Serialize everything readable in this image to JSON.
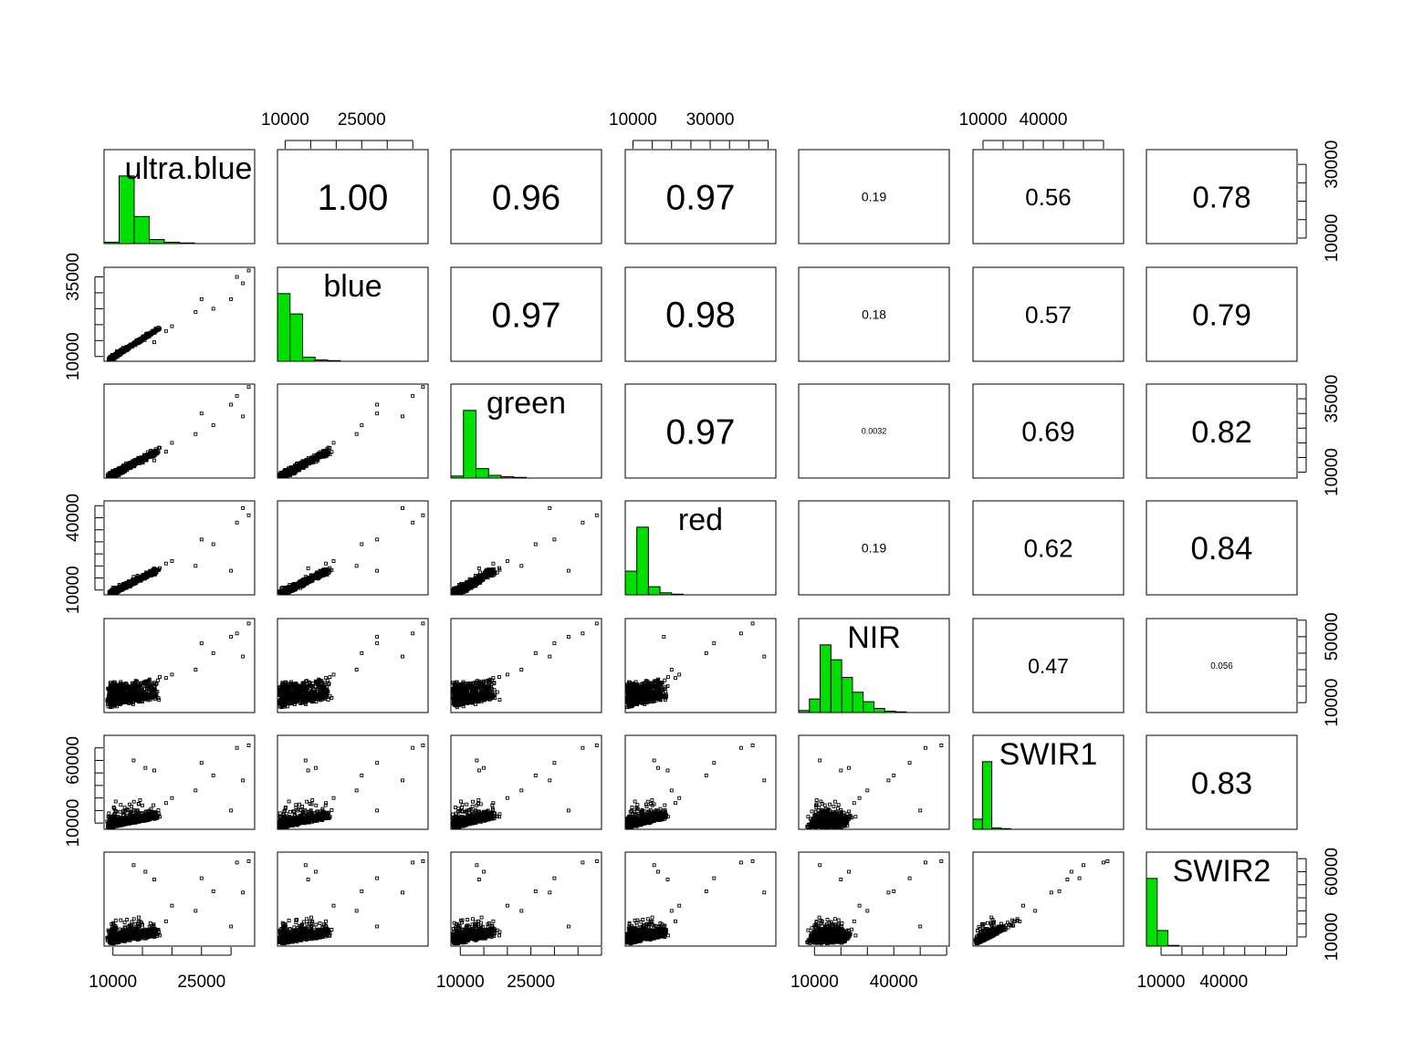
{
  "chart_data": {
    "type": "scatter",
    "variables": [
      "ultra.blue",
      "blue",
      "green",
      "red",
      "NIR",
      "SWIR1",
      "SWIR2"
    ],
    "ranges": [
      [
        8500,
        34000
      ],
      [
        8500,
        38000
      ],
      [
        8000,
        40000
      ],
      [
        8000,
        47000
      ],
      [
        4000,
        61000
      ],
      [
        5000,
        80000
      ],
      [
        3000,
        75000
      ]
    ],
    "correlations": [
      [
        "1.00",
        "0.96",
        "0.97",
        "0.19",
        "0.56",
        "0.78"
      ],
      [
        "0.97",
        "0.98",
        "0.18",
        "0.57",
        "0.79"
      ],
      [
        "0.97",
        "0.0032",
        "0.69",
        "0.82"
      ],
      [
        "0.19",
        "0.62",
        "0.84"
      ],
      [
        "0.47",
        "0.056"
      ],
      [
        "0.83"
      ]
    ],
    "axis_ticks": {
      "top": [
        {
          "col": 1,
          "values": [
            10000,
            15000,
            20000,
            25000,
            30000,
            35000
          ],
          "labels": [
            "10000",
            "25000"
          ]
        },
        {
          "col": 3,
          "values": [
            10000,
            15000,
            20000,
            25000,
            30000,
            35000,
            40000,
            45000
          ],
          "labels": [
            "10000",
            "30000"
          ]
        },
        {
          "col": 5,
          "values": [
            10000,
            20000,
            30000,
            40000,
            50000,
            60000,
            70000
          ],
          "labels": [
            "10000",
            "40000"
          ]
        }
      ],
      "bottom": [
        {
          "col": 0,
          "values": [
            10000,
            15000,
            20000,
            25000,
            30000
          ],
          "labels": [
            "10000",
            "25000"
          ]
        },
        {
          "col": 2,
          "values": [
            10000,
            15000,
            20000,
            25000,
            30000,
            35000,
            40000
          ],
          "labels": [
            "10000",
            "25000"
          ]
        },
        {
          "col": 4,
          "values": [
            10000,
            20000,
            30000,
            40000,
            50000,
            60000
          ],
          "labels": [
            "10000",
            "40000"
          ]
        },
        {
          "col": 6,
          "values": [
            10000,
            20000,
            30000,
            40000,
            50000,
            60000,
            70000
          ],
          "labels": [
            "10000",
            "40000"
          ]
        }
      ],
      "left": [
        {
          "row": 1,
          "values": [
            10000,
            15000,
            20000,
            25000,
            30000,
            35000
          ],
          "labels": [
            "10000",
            "35000"
          ]
        },
        {
          "row": 3,
          "values": [
            10000,
            15000,
            20000,
            25000,
            30000,
            35000,
            40000,
            45000
          ],
          "labels": [
            "10000",
            "40000"
          ]
        },
        {
          "row": 5,
          "values": [
            10000,
            20000,
            30000,
            40000,
            50000,
            60000,
            70000
          ],
          "labels": [
            "10000",
            "60000"
          ]
        }
      ],
      "right": [
        {
          "row": 0,
          "values": [
            10000,
            15000,
            20000,
            25000,
            30000
          ],
          "labels": [
            "10000",
            "30000"
          ]
        },
        {
          "row": 2,
          "values": [
            10000,
            15000,
            20000,
            25000,
            30000,
            35000,
            40000
          ],
          "labels": [
            "10000",
            "35000"
          ]
        },
        {
          "row": 4,
          "values": [
            10000,
            20000,
            30000,
            40000,
            50000,
            60000
          ],
          "labels": [
            "10000",
            "50000"
          ]
        },
        {
          "row": 6,
          "values": [
            10000,
            20000,
            30000,
            40000,
            50000,
            60000,
            70000
          ],
          "labels": [
            "10000",
            "60000"
          ]
        }
      ]
    },
    "histograms": [
      {
        "var": "ultra.blue",
        "counts": [
          0.02,
          1.0,
          0.4,
          0.06,
          0.02,
          0.01,
          0.0,
          0.0,
          0.0,
          0.0
        ]
      },
      {
        "var": "blue",
        "counts": [
          1.0,
          0.7,
          0.06,
          0.02,
          0.01,
          0.0,
          0.0,
          0.0,
          0.0,
          0.0,
          0.0,
          0.0
        ]
      },
      {
        "var": "green",
        "counts": [
          0.03,
          1.0,
          0.14,
          0.04,
          0.02,
          0.01,
          0.0,
          0.0,
          0.0,
          0.0,
          0.0,
          0.0
        ]
      },
      {
        "var": "red",
        "counts": [
          0.35,
          1.0,
          0.12,
          0.03,
          0.01,
          0.0,
          0.0,
          0.0,
          0.0,
          0.0,
          0.0,
          0.0,
          0.0
        ]
      },
      {
        "var": "NIR",
        "counts": [
          0.03,
          0.2,
          1.0,
          0.78,
          0.52,
          0.3,
          0.16,
          0.06,
          0.02,
          0.01,
          0.0,
          0.0,
          0.0,
          0.0
        ]
      },
      {
        "var": "SWIR1",
        "counts": [
          0.15,
          1.0,
          0.02,
          0.01,
          0.0,
          0.0,
          0.0,
          0.0,
          0.0,
          0.0,
          0.0,
          0.0,
          0.0,
          0.0,
          0.0,
          0.0
        ]
      },
      {
        "var": "SWIR2",
        "counts": [
          1.0,
          0.23,
          0.01,
          0.0,
          0.0,
          0.0,
          0.0,
          0.0,
          0.0,
          0.0,
          0.0,
          0.0,
          0.0,
          0.0
        ]
      }
    ],
    "hist_color": "#00e000",
    "point_color": "#000000",
    "grid": false
  }
}
